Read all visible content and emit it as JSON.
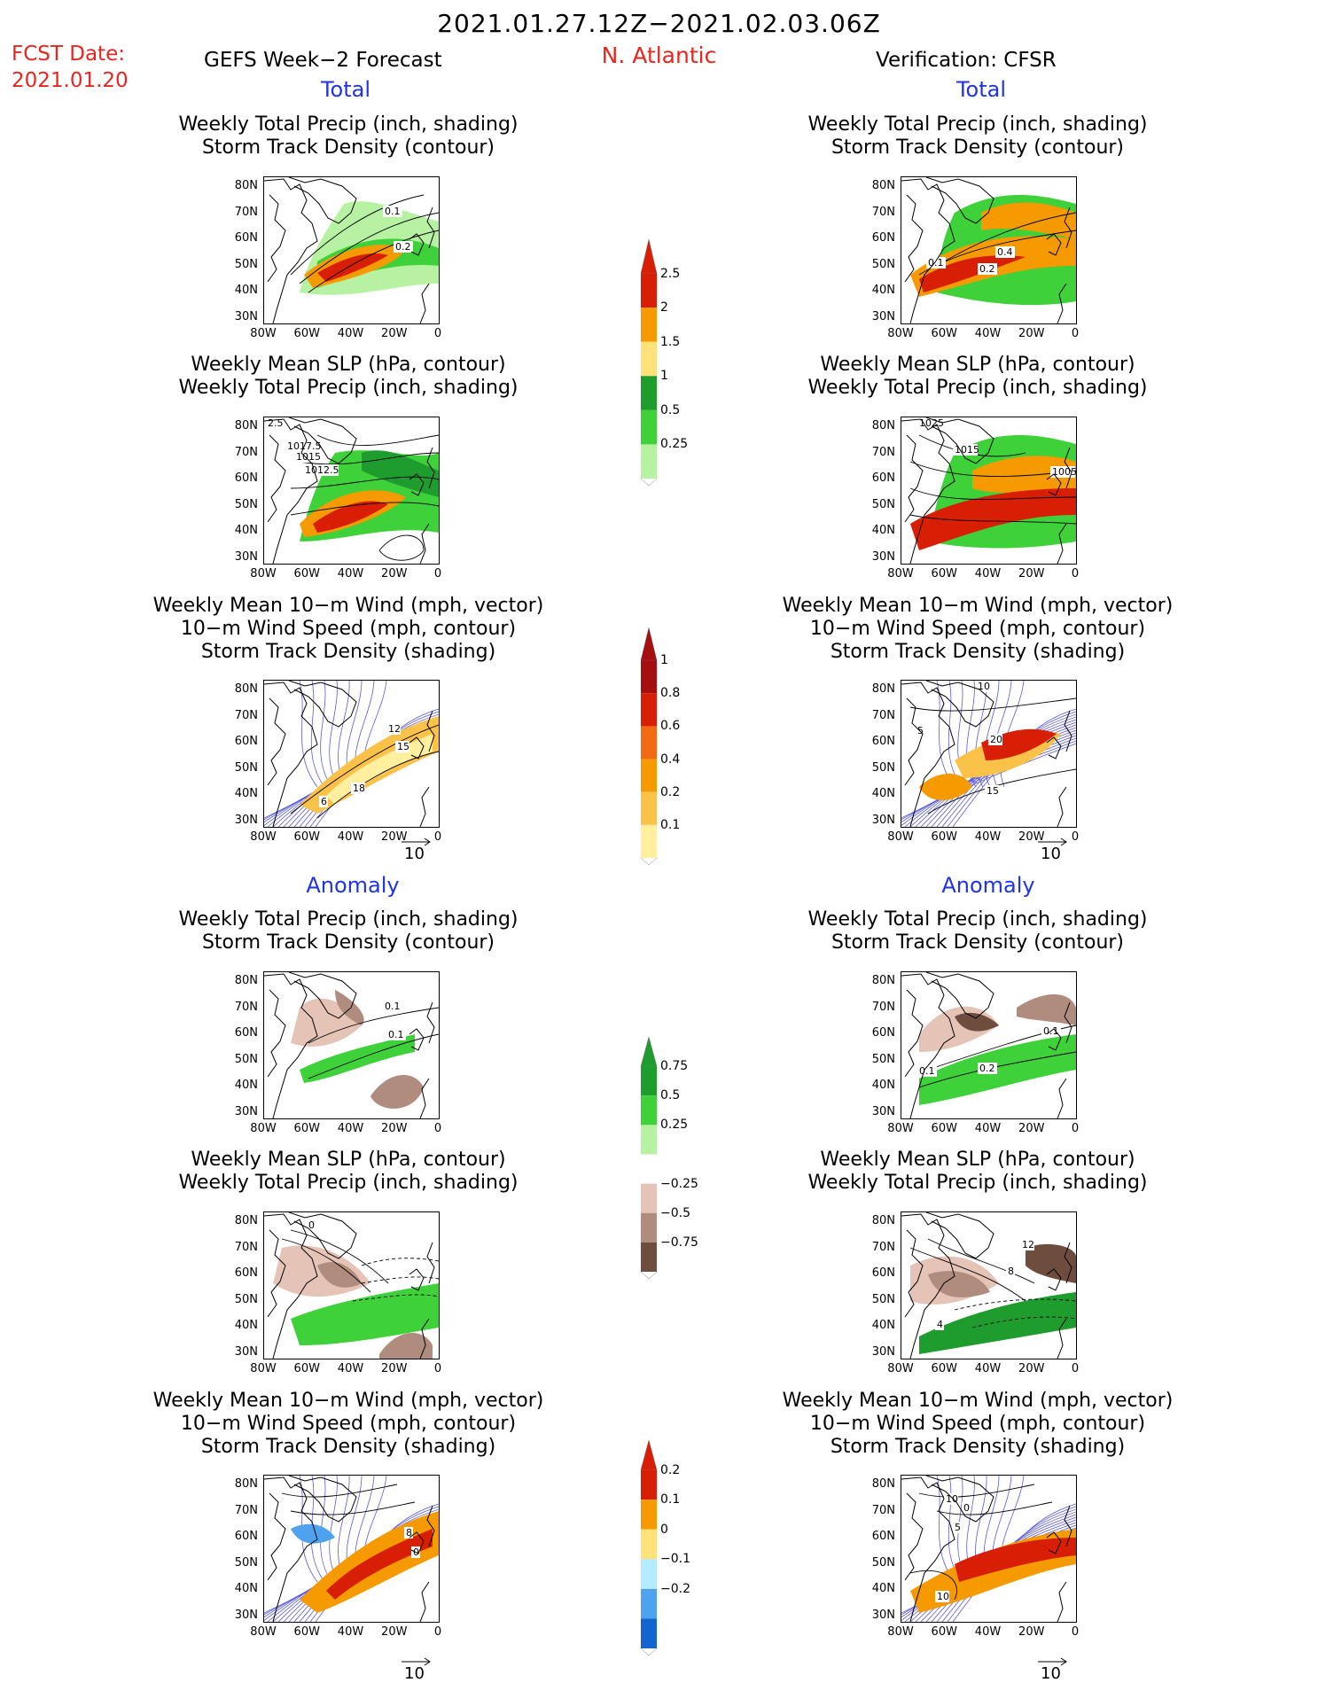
{
  "header": {
    "title": "2021.01.27.12Z−2021.02.03.06Z",
    "fcst_label": "FCST Date:",
    "fcst_date": "2021.01.20",
    "left_title": "GEFS Week−2 Forecast",
    "region": "N. Atlantic",
    "right_title": "Verification: CFSR"
  },
  "sections": {
    "total": "Total",
    "anomaly": "Anomaly"
  },
  "panel_titles": {
    "precip_storm": [
      "Weekly Total Precip (inch, shading)",
      "Storm Track Density (contour)"
    ],
    "slp_precip": [
      "Weekly Mean SLP (hPa, contour)",
      "Weekly Total Precip (inch, shading)"
    ],
    "wind_storm": [
      "Weekly Mean 10−m Wind (mph, vector)",
      "10−m Wind Speed (mph, contour)",
      "Storm Track Density (shading)"
    ]
  },
  "axes": {
    "lat_ticks": [
      "80N",
      "70N",
      "60N",
      "50N",
      "40N",
      "30N"
    ],
    "lon_ticks": [
      "80W",
      "60W",
      "40W",
      "20W",
      "0"
    ]
  },
  "vector_ref": "10",
  "colorbars": {
    "precip_total": {
      "labels": [
        "2.5",
        "2",
        "1.5",
        "1",
        "0.5",
        "0.25"
      ],
      "colors": [
        "#d81e05",
        "#f59a00",
        "#ffe27a",
        "#1f9c2e",
        "#3fd13a",
        "#b6f2a2"
      ]
    },
    "storm_total": {
      "labels": [
        "1",
        "0.8",
        "0.6",
        "0.4",
        "0.2",
        "0.1"
      ],
      "colors": [
        "#a50f0f",
        "#d81e05",
        "#f26a14",
        "#f59a00",
        "#fbc24a",
        "#ffef9e"
      ]
    },
    "precip_anom": {
      "labels": [
        "0.75",
        "0.5",
        "0.25",
        "−0.25",
        "−0.5",
        "−0.75"
      ],
      "colors": [
        "#1f9c2e",
        "#3fd13a",
        "#b6f2a2",
        "#ffffff",
        "#e5c3b6",
        "#b08c7e",
        "#6e4c3e"
      ]
    },
    "storm_anom": {
      "labels": [
        "0.2",
        "0.1",
        "0",
        "−0.1",
        "−0.2"
      ],
      "colors": [
        "#d81e05",
        "#f59a00",
        "#ffe27a",
        "#b3ecff",
        "#4fa3ee",
        "#1463d0"
      ]
    }
  },
  "contour_labels": {
    "p1": [
      "0.1",
      "0.2"
    ],
    "p2": [
      "1017.5",
      "1015",
      "1012.5",
      "2.5"
    ],
    "p3": [
      "12",
      "15",
      "18",
      "6"
    ],
    "p4": [
      "0.1",
      "0.1"
    ],
    "p5": [
      "0"
    ],
    "p6": [
      "8",
      "0"
    ],
    "q1": [
      "0.1",
      "0.2",
      "0.4"
    ],
    "q2": [
      "1025",
      "1015",
      "1005"
    ],
    "q3": [
      "10",
      "20",
      "5",
      "15"
    ],
    "q4": [
      "0.1",
      "0.1",
      "0.2"
    ],
    "q5": [
      "12",
      "8",
      "4"
    ],
    "q6": [
      "10",
      "5",
      "0",
      "10"
    ]
  }
}
